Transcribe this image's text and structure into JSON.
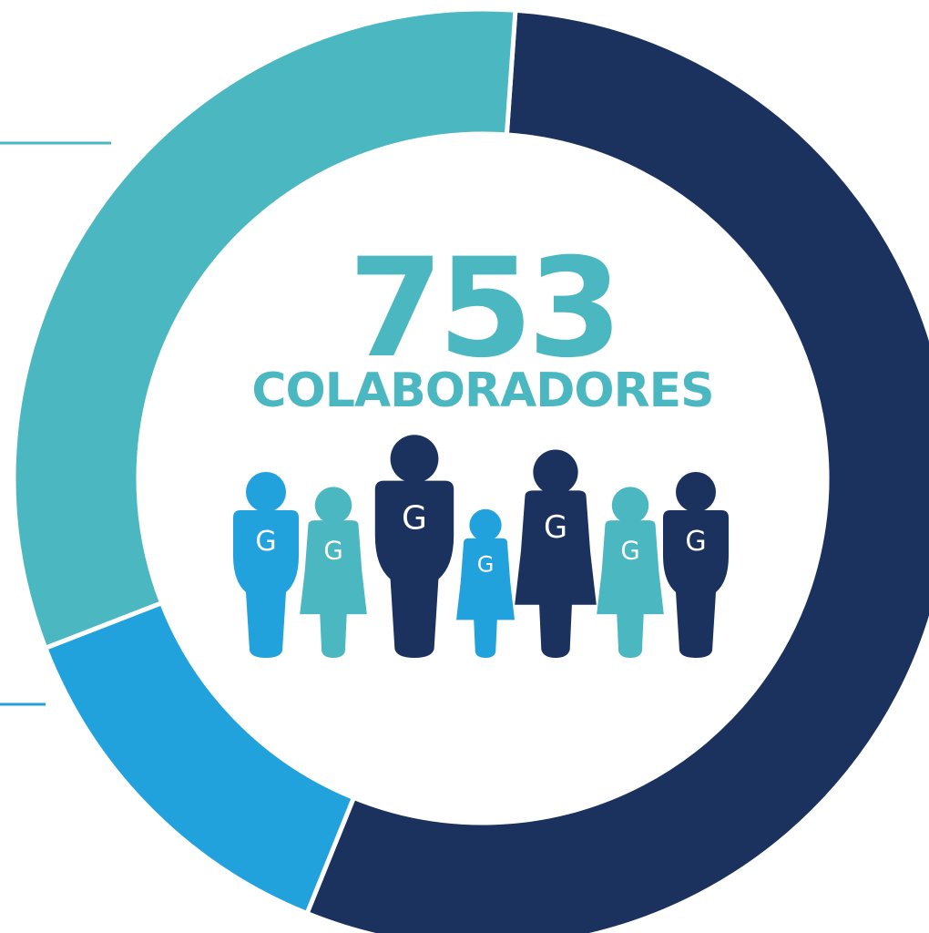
{
  "chart_data": {
    "type": "pie",
    "variant": "donut",
    "title": "",
    "slices": [
      {
        "value": 55,
        "color": "#1b315e"
      },
      {
        "value": 13,
        "color": "#22a2dd"
      },
      {
        "value": 32,
        "color": "#4bb7c1"
      }
    ]
  },
  "center": {
    "total": "753",
    "label": "COLABORADORES",
    "color": "#4bb7c1"
  },
  "icons": {
    "letter": "G",
    "people": [
      {
        "type": "man",
        "color": "#22a2dd"
      },
      {
        "type": "woman",
        "color": "#4bb7c1"
      },
      {
        "type": "man",
        "color": "#1b315e"
      },
      {
        "type": "woman",
        "color": "#22a2dd"
      },
      {
        "type": "woman",
        "color": "#1b315e"
      },
      {
        "type": "woman",
        "color": "#4bb7c1"
      },
      {
        "type": "man",
        "color": "#1b315e"
      }
    ]
  },
  "leader_lines": [
    {
      "color": "#4bb7c1"
    },
    {
      "color": "#22a2dd"
    }
  ]
}
